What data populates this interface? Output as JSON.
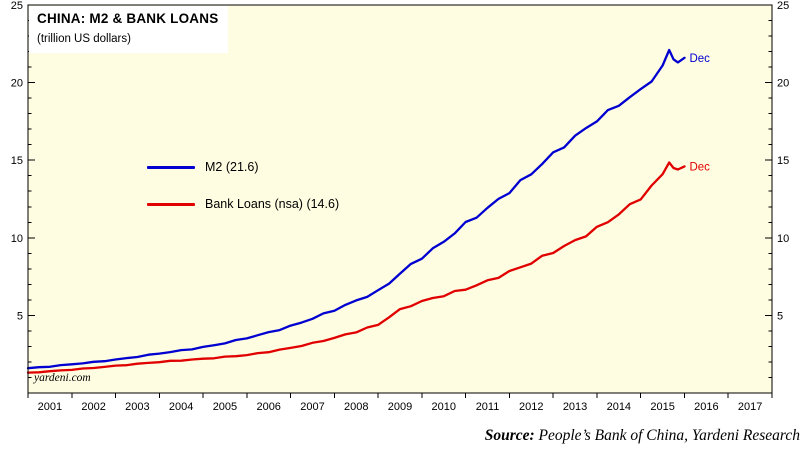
{
  "header": {
    "title": "CHINA: M2 & BANK LOANS",
    "subtitle": "(trillion US dollars)"
  },
  "watermark": "yardeni.com",
  "source": {
    "label": "Source:",
    "text": " People’s Bank of China, Yardeni Research"
  },
  "colors": {
    "background": "#FFFDE1",
    "frame": "#000000",
    "m2": "#0000D0",
    "loans": "#E00000",
    "text": "#000000"
  },
  "axis": {
    "ylim": [
      0,
      25
    ],
    "yticks": [
      5,
      10,
      15,
      20,
      25
    ],
    "y_minor_step": 1,
    "xlim": [
      2001,
      2018
    ],
    "year_labels": [
      "2001",
      "2002",
      "2003",
      "2004",
      "2005",
      "2006",
      "2007",
      "2008",
      "2009",
      "2010",
      "2011",
      "2012",
      "2013",
      "2014",
      "2015",
      "2016",
      "2017"
    ]
  },
  "chart_data": {
    "type": "line",
    "title": "CHINA: M2 & BANK LOANS",
    "subtitle": "(trillion US dollars)",
    "ylabel": "trillion US dollars",
    "xlim": [
      2001,
      2018
    ],
    "ylim": [
      0,
      25
    ],
    "yticks": [
      5,
      10,
      15,
      20,
      25
    ],
    "legend_position": "inside-upper-left",
    "grid": false,
    "x": [
      2001,
      2001.25,
      2001.5,
      2001.75,
      2002,
      2002.25,
      2002.5,
      2002.75,
      2003,
      2003.25,
      2003.5,
      2003.75,
      2004,
      2004.25,
      2004.5,
      2004.75,
      2005,
      2005.25,
      2005.5,
      2005.75,
      2006,
      2006.25,
      2006.5,
      2006.75,
      2007,
      2007.25,
      2007.5,
      2007.75,
      2008,
      2008.25,
      2008.5,
      2008.75,
      2009,
      2009.25,
      2009.5,
      2009.75,
      2010,
      2010.25,
      2010.5,
      2010.75,
      2011,
      2011.25,
      2011.5,
      2011.75,
      2012,
      2012.25,
      2012.5,
      2012.75,
      2013,
      2013.25,
      2013.5,
      2013.75,
      2014,
      2014.25,
      2014.5,
      2014.75,
      2015,
      2015.25,
      2015.5,
      2015.65,
      2015.75,
      2015.85,
      2016
    ],
    "series": [
      {
        "name": "M2 (21.6)",
        "end_label": "Dec",
        "end_value": 21.6,
        "color_key": "m2",
        "values": [
          1.6,
          1.65,
          1.71,
          1.78,
          1.85,
          1.92,
          1.99,
          2.07,
          2.15,
          2.24,
          2.34,
          2.44,
          2.55,
          2.64,
          2.74,
          2.84,
          2.95,
          3.08,
          3.22,
          3.38,
          3.55,
          3.72,
          3.9,
          4.1,
          4.3,
          4.55,
          4.8,
          5.08,
          5.35,
          5.65,
          5.95,
          6.25,
          6.55,
          7.1,
          7.7,
          8.25,
          8.75,
          9.25,
          9.75,
          10.35,
          10.9,
          11.4,
          11.9,
          12.45,
          13.0,
          13.6,
          14.15,
          14.8,
          15.4,
          15.95,
          16.5,
          17.05,
          17.6,
          18.1,
          18.6,
          19.05,
          19.5,
          20.2,
          21.1,
          22.1,
          21.5,
          21.3,
          21.6
        ]
      },
      {
        "name": "Bank Loans (nsa) (14.6)",
        "end_label": "Dec",
        "end_value": 14.6,
        "color_key": "loans",
        "values": [
          1.3,
          1.35,
          1.4,
          1.45,
          1.5,
          1.56,
          1.62,
          1.68,
          1.75,
          1.81,
          1.87,
          1.94,
          2.0,
          2.05,
          2.1,
          2.15,
          2.2,
          2.26,
          2.32,
          2.38,
          2.45,
          2.55,
          2.66,
          2.78,
          2.9,
          3.05,
          3.2,
          3.38,
          3.55,
          3.75,
          3.95,
          4.18,
          4.4,
          4.9,
          5.35,
          5.65,
          5.9,
          6.1,
          6.3,
          6.5,
          6.7,
          6.95,
          7.2,
          7.5,
          7.8,
          8.1,
          8.4,
          8.75,
          9.1,
          9.45,
          9.8,
          10.2,
          10.6,
          11.05,
          11.55,
          12.05,
          12.6,
          13.3,
          14.1,
          14.85,
          14.5,
          14.4,
          14.6
        ]
      }
    ]
  }
}
